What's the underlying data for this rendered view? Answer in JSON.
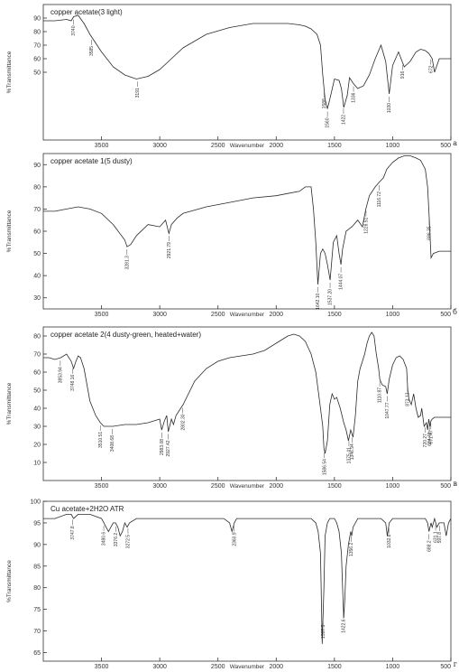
{
  "chart_data": [
    {
      "type": "line",
      "panel_letter": "a",
      "title": "copper acetate(3 light)",
      "xlabel": "Wavenumber",
      "ylabel": "%Transmittance",
      "xlim": [
        4000,
        500
      ],
      "ylim": [
        0,
        100
      ],
      "x_ticks": [
        3500,
        3000,
        2500,
        2000,
        1500,
        1000,
        500
      ],
      "y_ticks": [
        50,
        60,
        70,
        80,
        90
      ],
      "series": [
        {
          "x": [
            4000,
            3900,
            3800,
            3760,
            3740,
            3700,
            3650,
            3600,
            3500,
            3400,
            3300,
            3200,
            3100,
            3000,
            2900,
            2800,
            2600,
            2400,
            2200,
            2000,
            1900,
            1800,
            1750,
            1700,
            1650,
            1620,
            1600,
            1580,
            1560,
            1540,
            1500,
            1460,
            1440,
            1420,
            1390,
            1370,
            1340,
            1300,
            1250,
            1200,
            1150,
            1100,
            1060,
            1030,
            1000,
            950,
            900,
            850,
            800,
            760,
            720,
            690,
            660,
            640,
            620,
            600,
            550,
            500
          ],
          "y": [
            88,
            88,
            89,
            88,
            91,
            92,
            86,
            78,
            65,
            54,
            48,
            45,
            47,
            52,
            60,
            68,
            78,
            83,
            86,
            86,
            86,
            85,
            84,
            82,
            78,
            70,
            48,
            30,
            23,
            30,
            45,
            44,
            38,
            24,
            33,
            46,
            42,
            38,
            40,
            48,
            60,
            70,
            58,
            34,
            55,
            65,
            54,
            58,
            65,
            67,
            66,
            64,
            60,
            50,
            55,
            60,
            60,
            60
          ]
        }
      ],
      "peak_labels": [
        {
          "x": 3740,
          "text": "3740"
        },
        {
          "x": 3585,
          "text": "3585"
        },
        {
          "x": 3191,
          "text": "3191"
        },
        {
          "x": 1588,
          "text": "1588"
        },
        {
          "x": 1560,
          "text": "1560"
        },
        {
          "x": 1422,
          "text": "1422"
        },
        {
          "x": 1336,
          "text": "1336"
        },
        {
          "x": 1030,
          "text": "1030"
        },
        {
          "x": 916,
          "text": "916"
        },
        {
          "x": 672,
          "text": "672"
        }
      ]
    },
    {
      "type": "line",
      "panel_letter": "б",
      "title": "copper acetate 1(5 dusty)",
      "xlabel": "Wavenumber",
      "ylabel": "%Transmittance",
      "xlim": [
        4000,
        500
      ],
      "ylim": [
        25,
        95
      ],
      "x_ticks": [
        3500,
        3000,
        2500,
        2000,
        1500,
        1000,
        500
      ],
      "y_ticks": [
        30,
        40,
        50,
        60,
        70,
        80,
        90
      ],
      "series": [
        {
          "x": [
            4000,
            3900,
            3800,
            3700,
            3600,
            3500,
            3400,
            3300,
            3281,
            3250,
            3200,
            3100,
            3000,
            2950,
            2921,
            2900,
            2850,
            2800,
            2600,
            2400,
            2200,
            2000,
            1900,
            1800,
            1750,
            1700,
            1680,
            1660,
            1642,
            1620,
            1600,
            1580,
            1560,
            1537,
            1510,
            1480,
            1460,
            1444,
            1430,
            1400,
            1350,
            1300,
            1260,
            1230,
            1200,
            1150,
            1116,
            1080,
            1050,
            1000,
            950,
            900,
            850,
            800,
            760,
            720,
            700,
            686,
            670,
            650,
            600,
            550,
            500
          ],
          "y": [
            69,
            69,
            70,
            71,
            70,
            68,
            63,
            56,
            53,
            54,
            58,
            63,
            62,
            65,
            59,
            63,
            66,
            68,
            71,
            73,
            75,
            76,
            77,
            78,
            80,
            80,
            70,
            55,
            36,
            50,
            52,
            50,
            45,
            38,
            55,
            58,
            50,
            45,
            52,
            60,
            62,
            65,
            62,
            70,
            76,
            80,
            82,
            84,
            88,
            91,
            93,
            94,
            94,
            93,
            92,
            88,
            80,
            66,
            48,
            50,
            51,
            51,
            51
          ]
        }
      ],
      "peak_labels": [
        {
          "x": 3281.3,
          "text": "3281.3"
        },
        {
          "x": 2921.79,
          "text": "2921.79"
        },
        {
          "x": 1642.1,
          "text": "1642.10"
        },
        {
          "x": 1537.2,
          "text": "1537.20"
        },
        {
          "x": 1444.07,
          "text": "1444.07"
        },
        {
          "x": 1228.51,
          "text": "1228.51"
        },
        {
          "x": 1116.72,
          "text": "1116.72"
        },
        {
          "x": 686.35,
          "text": "686.35"
        }
      ]
    },
    {
      "type": "line",
      "panel_letter": "в",
      "title": "copper acetate 2(4 dusty-green, heated+water)",
      "xlabel": "Wavenumber",
      "ylabel": "%Transmittance",
      "xlim": [
        4000,
        500
      ],
      "ylim": [
        0,
        85
      ],
      "x_ticks": [
        3500,
        3000,
        2500,
        2000,
        1500,
        1000,
        500
      ],
      "y_ticks": [
        10,
        20,
        30,
        40,
        50,
        60,
        70,
        80
      ],
      "series": [
        {
          "x": [
            4000,
            3950,
            3900,
            3850,
            3800,
            3760,
            3740,
            3720,
            3700,
            3680,
            3650,
            3600,
            3550,
            3510,
            3480,
            3450,
            3400,
            3300,
            3200,
            3100,
            3000,
            2983,
            2960,
            2940,
            2927,
            2900,
            2882,
            2860,
            2800,
            2700,
            2600,
            2500,
            2400,
            2300,
            2200,
            2100,
            2000,
            1950,
            1900,
            1850,
            1800,
            1750,
            1700,
            1660,
            1620,
            1600,
            1590,
            1580,
            1560,
            1540,
            1520,
            1500,
            1480,
            1450,
            1420,
            1400,
            1380,
            1360,
            1340,
            1320,
            1300,
            1280,
            1260,
            1240,
            1220,
            1200,
            1180,
            1160,
            1140,
            1120,
            1110,
            1090,
            1060,
            1047,
            1030,
            1000,
            970,
            940,
            910,
            880,
            870,
            860,
            840,
            820,
            800,
            780,
            760,
            750,
            730,
            710,
            700,
            690,
            680,
            671,
            660,
            640,
            620,
            600,
            550,
            500
          ],
          "y": [
            68,
            68,
            67,
            68,
            70,
            66,
            62,
            66,
            69,
            68,
            62,
            44,
            36,
            32,
            30,
            30,
            30,
            31,
            31,
            32,
            34,
            28,
            33,
            36,
            27,
            34,
            31,
            36,
            42,
            55,
            62,
            66,
            68,
            69,
            70,
            72,
            76,
            78,
            80,
            81,
            80,
            77,
            70,
            60,
            40,
            30,
            18,
            15,
            22,
            42,
            48,
            45,
            46,
            40,
            32,
            28,
            22,
            28,
            24,
            36,
            55,
            62,
            66,
            70,
            76,
            80,
            82,
            80,
            70,
            62,
            56,
            53,
            52,
            48,
            56,
            64,
            68,
            69,
            67,
            62,
            50,
            45,
            42,
            48,
            40,
            35,
            36,
            40,
            30,
            32,
            28,
            34,
            30,
            33,
            34,
            35,
            35,
            35,
            35,
            35
          ]
        }
      ],
      "peak_labels": [
        {
          "x": 3853.94,
          "text": "3853.94"
        },
        {
          "x": 3748.16,
          "text": "3748.16"
        },
        {
          "x": 3510.51,
          "text": "3510.51"
        },
        {
          "x": 3408.68,
          "text": "3408.68"
        },
        {
          "x": 2983.08,
          "text": "2983.08"
        },
        {
          "x": 2927.42,
          "text": "2927.42"
        },
        {
          "x": 2802.3,
          "text": "2802.30"
        },
        {
          "x": 1586.54,
          "text": "1586.54"
        },
        {
          "x": 1375.41,
          "text": "1375.41"
        },
        {
          "x": 1346.94,
          "text": "1346.94"
        },
        {
          "x": 1110.87,
          "text": "1110.87"
        },
        {
          "x": 1047.77,
          "text": "1047.77"
        },
        {
          "x": 873.13,
          "text": "873.13"
        },
        {
          "x": 720.27,
          "text": "720.27"
        },
        {
          "x": 684.48,
          "text": "684.48"
        },
        {
          "x": 671.47,
          "text": "671.47"
        }
      ]
    },
    {
      "type": "line",
      "panel_letter": "г",
      "title": "Cu acetate+2H2O ATR",
      "xlabel": "Wavenumber",
      "ylabel": "%Transmittance",
      "xlim": [
        4000,
        500
      ],
      "ylim": [
        63,
        100
      ],
      "x_ticks": [
        3500,
        3000,
        2500,
        2000,
        1500,
        1000,
        500
      ],
      "y_ticks": [
        65,
        70,
        75,
        80,
        85,
        90,
        95,
        100
      ],
      "series": [
        {
          "x": [
            4000,
            3900,
            3800,
            3760,
            3740,
            3700,
            3600,
            3500,
            3480,
            3460,
            3440,
            3420,
            3400,
            3380,
            3360,
            3340,
            3320,
            3300,
            3280,
            3260,
            3200,
            3100,
            3000,
            2900,
            2800,
            2600,
            2500,
            2450,
            2400,
            2380,
            2360,
            2340,
            2300,
            2200,
            2000,
            1900,
            1800,
            1700,
            1660,
            1640,
            1620,
            1605,
            1590,
            1580,
            1560,
            1540,
            1520,
            1500,
            1480,
            1460,
            1440,
            1430,
            1420,
            1410,
            1400,
            1380,
            1360,
            1352,
            1340,
            1320,
            1300,
            1200,
            1100,
            1060,
            1046,
            1030,
            1000,
            900,
            800,
            760,
            720,
            700,
            688,
            670,
            660,
            640,
            620,
            600,
            560,
            540,
            520,
            500
          ],
          "y": [
            96,
            96,
            97,
            97,
            96,
            97,
            97,
            96,
            95,
            94,
            93,
            94,
            95,
            95,
            94,
            92,
            93,
            95,
            94,
            95,
            96,
            96,
            96,
            96,
            96,
            96,
            96,
            96,
            95,
            93,
            95,
            96,
            96,
            96,
            96,
            96,
            96,
            96,
            95,
            93,
            88,
            67,
            80,
            92,
            95,
            96,
            96,
            96,
            95,
            93,
            88,
            80,
            73,
            78,
            85,
            90,
            93,
            92,
            94,
            95,
            96,
            96,
            96,
            95,
            92,
            95,
            96,
            96,
            96,
            96,
            96,
            95,
            93,
            95,
            94,
            96,
            94,
            95,
            95,
            92,
            95,
            96
          ]
        }
      ],
      "peak_labels": [
        {
          "x": 3747.8,
          "text": "3747.8"
        },
        {
          "x": 3480.6,
          "text": "3480.6"
        },
        {
          "x": 3376.2,
          "text": "3376.2"
        },
        {
          "x": 3272.5,
          "text": "3272.5"
        },
        {
          "x": 2360.9,
          "text": "2360.9"
        },
        {
          "x": 1597.5,
          "text": "1597.5"
        },
        {
          "x": 1422.6,
          "text": "1422.6"
        },
        {
          "x": 1356.2,
          "text": "1356.2"
        },
        {
          "x": 1032.8,
          "text": "1032.8"
        },
        {
          "x": 688.2,
          "text": "688.2"
        },
        {
          "x": 631.1,
          "text": "631.1"
        },
        {
          "x": 597.8,
          "text": "597.8"
        }
      ]
    }
  ]
}
